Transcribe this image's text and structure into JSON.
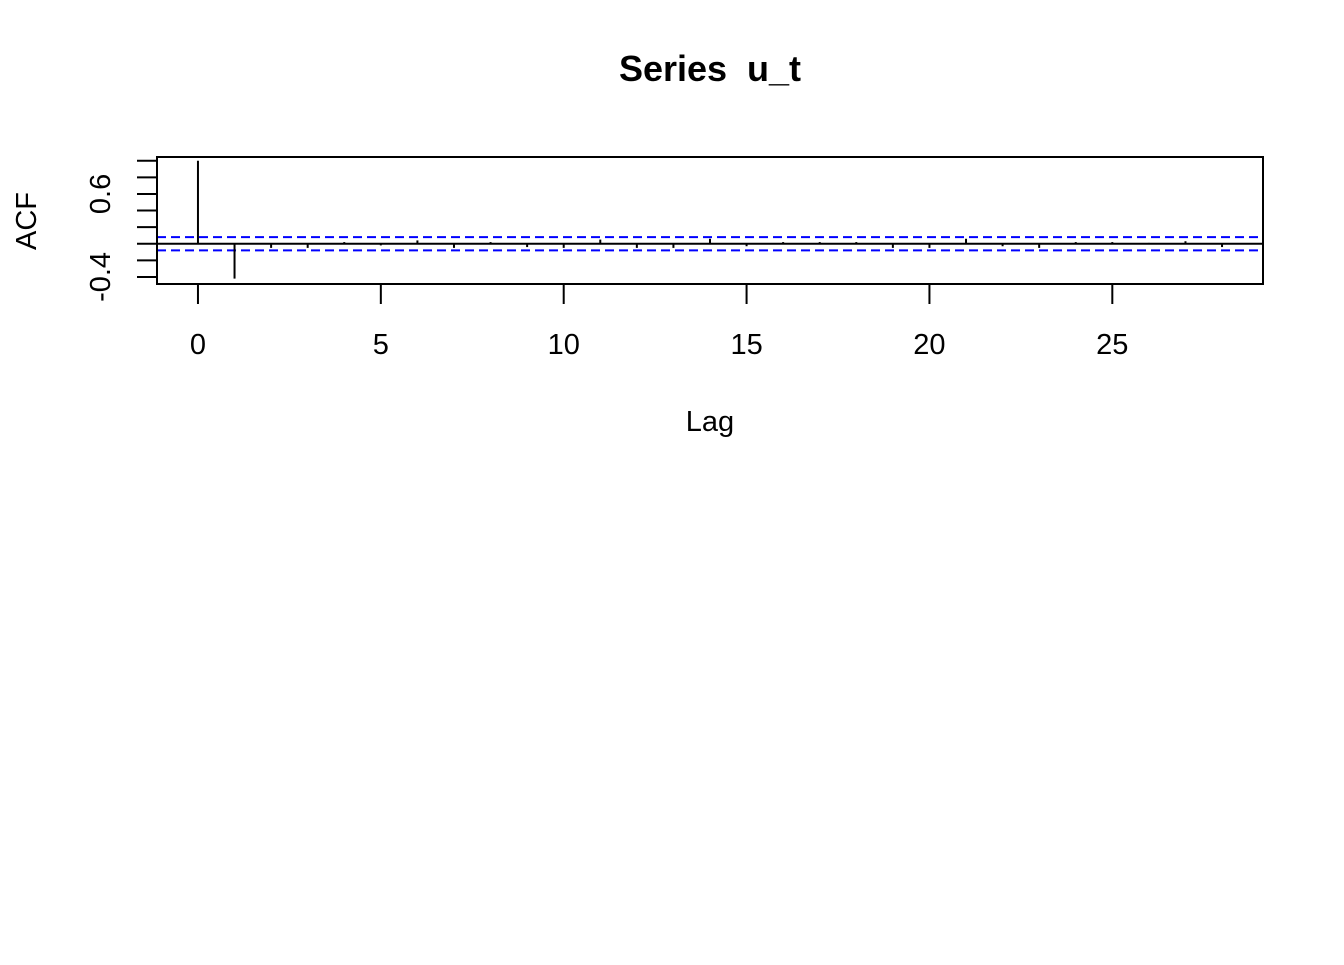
{
  "chart_data": {
    "type": "bar",
    "title": "Series  u_t",
    "xlabel": "Lag",
    "ylabel": "ACF",
    "x": [
      0,
      1,
      2,
      3,
      4,
      5,
      6,
      7,
      8,
      9,
      10,
      11,
      12,
      13,
      14,
      15,
      16,
      17,
      18,
      19,
      20,
      21,
      22,
      23,
      24,
      25,
      26,
      27,
      28
    ],
    "values": [
      1.0,
      -0.42,
      -0.05,
      -0.05,
      0.02,
      -0.02,
      0.04,
      -0.05,
      0.02,
      -0.04,
      -0.05,
      0.05,
      -0.05,
      -0.05,
      0.06,
      -0.03,
      0.02,
      0.02,
      0.02,
      -0.05,
      -0.05,
      0.06,
      -0.03,
      -0.05,
      0.02,
      0.02,
      0.01,
      0.03,
      -0.04
    ],
    "x_ticks": [
      0,
      5,
      10,
      15,
      20,
      25
    ],
    "x_tick_labels": [
      "0",
      "5",
      "10",
      "15",
      "20",
      "25"
    ],
    "y_ticks": [
      -0.4,
      -0.2,
      0.0,
      0.2,
      0.4,
      0.6,
      0.8,
      1.0
    ],
    "y_tick_labels": [
      "-0.4",
      "0.6"
    ],
    "y_labeled_ticks": [
      -0.4,
      0.6
    ],
    "xlim": [
      -1.12,
      29.12
    ],
    "ylim": [
      -0.485,
      1.045
    ],
    "confidence_band": 0.08,
    "band_color": "#0000ff",
    "bar_color": "#000000",
    "grid": false,
    "legend": "none"
  }
}
